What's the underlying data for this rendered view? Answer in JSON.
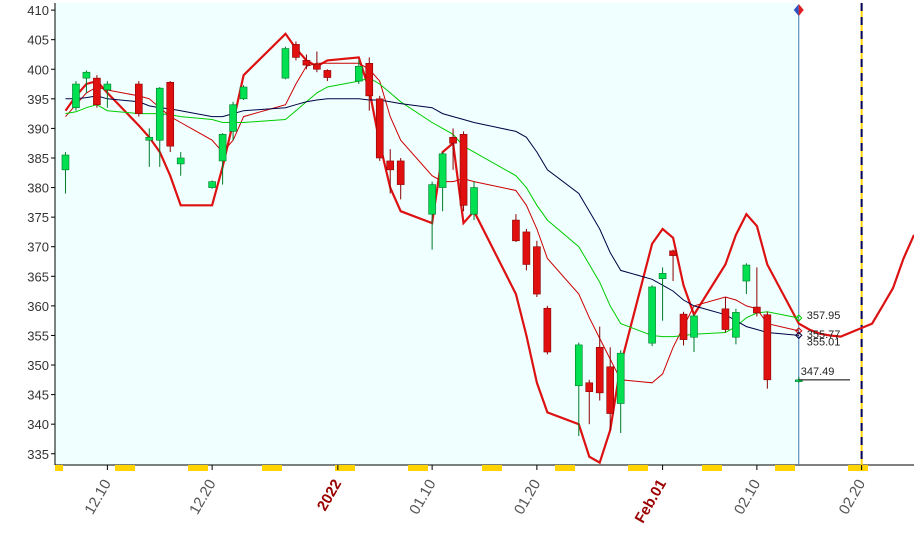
{
  "chart_data": {
    "type": "candlestick",
    "x": [
      "12.06",
      "12.07",
      "12.08",
      "12.09",
      "12.10",
      "12.13",
      "12.14",
      "12.15",
      "12.16",
      "12.17",
      "12.20",
      "12.21",
      "12.22",
      "12.23",
      "12.27",
      "12.28",
      "12.29",
      "12.30",
      "12.31",
      "01.03",
      "01.04",
      "01.05",
      "01.06",
      "01.07",
      "01.10",
      "01.11",
      "01.12",
      "01.13",
      "01.14",
      "01.18",
      "01.19",
      "01.20",
      "01.21",
      "01.24",
      "01.25",
      "01.26",
      "01.27",
      "01.28",
      "01.31",
      "02.01",
      "02.02",
      "02.03",
      "02.04",
      "02.07",
      "02.08",
      "02.09",
      "02.10",
      "02.11",
      "02.14"
    ],
    "candles": {
      "open": [
        383,
        393.5,
        398.5,
        398.5,
        396.5,
        397.5,
        388,
        388,
        397.8,
        384,
        380,
        384.5,
        389.5,
        395,
        398.5,
        404.2,
        401.5,
        400.8,
        399.8,
        398,
        401,
        395,
        384.5,
        384.5,
        375.5,
        380,
        388.5,
        389,
        375.5,
        374.5,
        372.5,
        370,
        359.6,
        346.5,
        347,
        353,
        349.7,
        343.5,
        353.7,
        364.6,
        369.3,
        358.6,
        354.7,
        359.5,
        354.7,
        364.2,
        359.8,
        358.5,
        347.2
      ],
      "high": [
        386,
        398,
        399.8,
        399,
        398,
        398,
        390,
        397,
        398,
        386,
        381.2,
        389.2,
        394.5,
        397.3,
        403.8,
        404.7,
        402.5,
        403,
        400,
        401.5,
        402,
        395.5,
        386.5,
        385,
        381,
        386,
        390,
        389.5,
        381,
        375.5,
        373,
        371,
        360,
        353.8,
        347.5,
        356.5,
        353,
        352.5,
        363.5,
        366.5,
        369.5,
        359,
        358.6,
        361.5,
        359.5,
        367.2,
        366.5,
        359,
        348
      ],
      "low": [
        379,
        393,
        396,
        393.5,
        393.5,
        392,
        383.5,
        383.5,
        386,
        382,
        379.8,
        380.5,
        388,
        394.8,
        398.3,
        401.5,
        400,
        399.5,
        398,
        397.5,
        393,
        384.5,
        379,
        378,
        369.5,
        376,
        383,
        376,
        374.5,
        370.8,
        366,
        361.5,
        351.8,
        338,
        340,
        344,
        339,
        338.5,
        353.2,
        357.5,
        364.2,
        353.3,
        352.2,
        355.5,
        353.5,
        362,
        358.2,
        346,
        347
      ],
      "close": [
        385.5,
        397.5,
        399.5,
        394,
        397.5,
        392.5,
        388.5,
        396.8,
        387,
        385,
        381,
        389,
        394,
        397,
        403.5,
        402,
        400.7,
        400,
        398.6,
        400.5,
        395.5,
        385,
        383,
        380.5,
        380.5,
        385.7,
        387.5,
        377,
        380,
        371,
        367,
        362,
        352.2,
        353.4,
        345.5,
        345.3,
        341.8,
        352,
        363.2,
        365.5,
        368.5,
        354.3,
        358.3,
        356,
        358.9,
        366.9,
        358.8,
        347.5,
        347.49
      ],
      "up_color": "#00e050",
      "down_color": "#e01010"
    },
    "series": [
      {
        "color": "#dd1111",
        "width": 2.2,
        "x": [
          "12.06",
          "12.07",
          "12.08",
          "12.09",
          "12.10",
          "12.13",
          "12.14",
          "12.15",
          "12.16",
          "12.17",
          "12.20",
          "12.21",
          "12.22",
          "12.23",
          "12.27",
          "12.28",
          "12.29",
          "12.30",
          "12.31",
          "01.03",
          "01.04",
          "01.05",
          "01.06",
          "01.07",
          "01.10",
          "01.11",
          "01.12",
          "01.13",
          "01.14",
          "01.18",
          "01.19",
          "01.20",
          "01.21",
          "01.24",
          "01.25",
          "01.26",
          "01.27",
          "01.28",
          "01.31",
          "02.01",
          "02.02",
          "02.03",
          "02.04",
          "02.07",
          "02.08",
          "02.09",
          "02.10",
          "02.11",
          "02.14",
          "02.15",
          "02.16",
          "02.17",
          "02.18",
          "02.21",
          "02.22",
          "02.23",
          "02.24",
          "02.25"
        ],
        "values": [
          393,
          395.5,
          397.5,
          398,
          396,
          390.5,
          388.5,
          386,
          382,
          377,
          377,
          383.5,
          391,
          399,
          406,
          403.5,
          401.5,
          400.5,
          401.5,
          402,
          396.5,
          387.5,
          380,
          376,
          374,
          386,
          387.5,
          374,
          376,
          362,
          355,
          347,
          342,
          340,
          334.5,
          333.5,
          339,
          350,
          370.5,
          373,
          371.5,
          363.5,
          358.5,
          367,
          372,
          375.5,
          373.5,
          367,
          357,
          356,
          355.3,
          355,
          354.8,
          357,
          360,
          363,
          368,
          372
        ]
      },
      {
        "color": "#cc0000",
        "width": 1,
        "values": [
          392,
          394,
          396,
          397,
          396.5,
          395.5,
          395,
          393.5,
          392,
          391,
          388,
          386,
          388,
          392,
          394,
          397.5,
          400.5,
          401,
          401,
          401,
          400,
          398,
          392,
          388,
          382,
          381,
          381,
          381.5,
          381,
          379.5,
          377,
          373,
          368,
          362,
          358,
          354.5,
          351,
          347.5,
          347,
          348.5,
          353,
          356.5,
          360,
          361.5,
          361,
          360,
          359.5,
          357,
          355.77
        ]
      },
      {
        "color": "#00cc00",
        "width": 1,
        "values": [
          392.5,
          392.8,
          393.5,
          394,
          393,
          392.5,
          392.5,
          392.5,
          392.3,
          392,
          391.5,
          391,
          391,
          391,
          391.5,
          393,
          394.5,
          396,
          397,
          398,
          398.5,
          397.5,
          396,
          394.5,
          391,
          390,
          389,
          387,
          386,
          382,
          380,
          377,
          374.5,
          370,
          367,
          364,
          360,
          357,
          355,
          354.8,
          354.8,
          355,
          355.2,
          355.5,
          356.5,
          358,
          358.8,
          359,
          357.95
        ]
      },
      {
        "color": "#000044",
        "width": 1,
        "values": [
          395,
          395,
          395.2,
          395.5,
          395,
          394.5,
          393.8,
          393.5,
          393.3,
          393,
          392,
          392,
          392.5,
          393,
          393.5,
          394,
          394.5,
          394.8,
          395,
          395,
          394.8,
          394.8,
          394.5,
          394.2,
          393.5,
          392.5,
          392,
          391.5,
          391,
          389.5,
          388.5,
          386,
          383,
          379,
          376,
          373,
          369,
          366,
          364.5,
          363.5,
          362.5,
          361,
          360,
          358.5,
          357.5,
          356.5,
          356,
          355.5,
          355.01
        ]
      }
    ],
    "xlim": [
      "12.05",
      "02.25"
    ],
    "xticks": [
      "12.10",
      "12.20",
      {
        "value": "01.01",
        "label": "2022"
      },
      "01.10",
      "01.20",
      {
        "value": "02.01",
        "label": "Feb.01"
      },
      "02.10",
      "02.20"
    ],
    "ylim": [
      333.1,
      411.2
    ],
    "yticks": [
      335,
      340,
      345,
      350,
      355,
      360,
      365,
      370,
      375,
      380,
      385,
      390,
      395,
      400,
      405,
      410
    ]
  }
}
